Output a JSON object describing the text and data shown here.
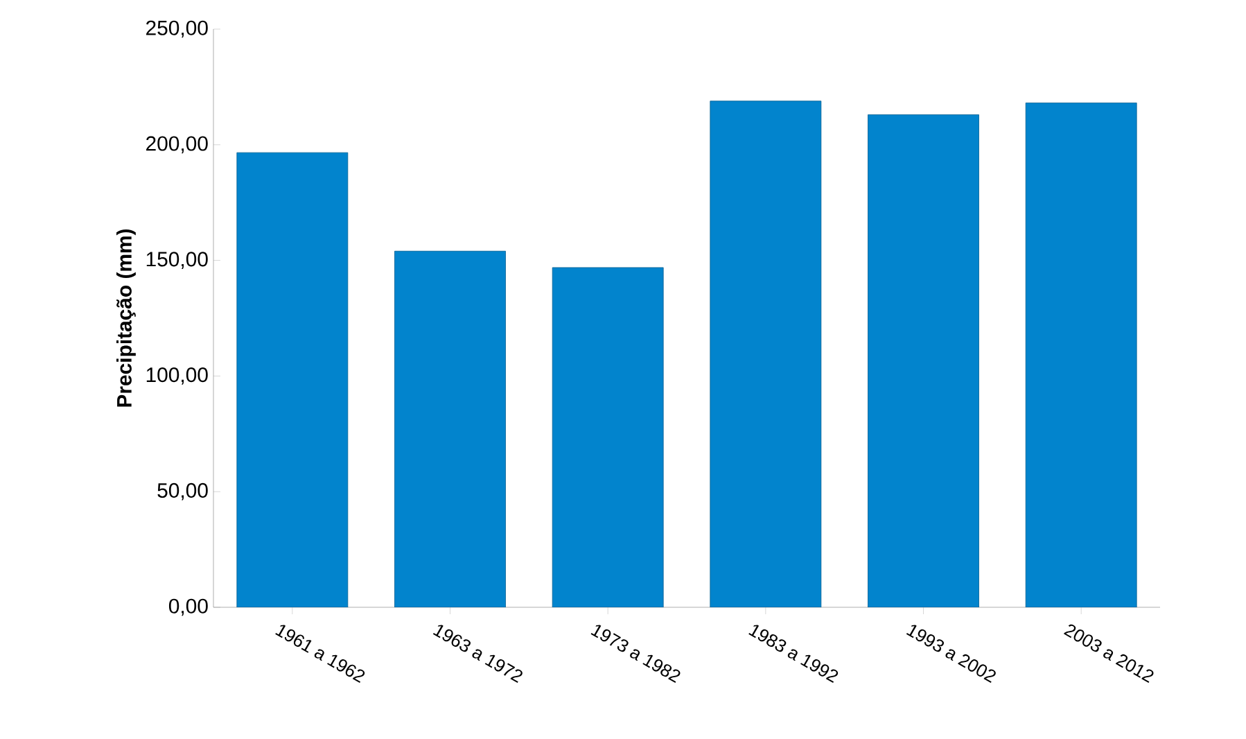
{
  "chart_data": {
    "type": "bar",
    "ylabel": "Precipitação (mm)",
    "categories": [
      "1961 a 1962",
      "1963 a 1972",
      "1973 a 1982",
      "1983 a 1992",
      "1993 a 2002",
      "2003 a 2012"
    ],
    "values": [
      196.6,
      154.0,
      146.9,
      218.9,
      213.0,
      218.1
    ],
    "color": "#0284cd",
    "ylim": [
      0,
      250
    ],
    "yticks": [
      {
        "value": 0,
        "label": "0,00"
      },
      {
        "value": 50,
        "label": "50,00"
      },
      {
        "value": 100,
        "label": "100,00"
      },
      {
        "value": 150,
        "label": "150,00"
      },
      {
        "value": 200,
        "label": "200,00"
      },
      {
        "value": 250,
        "label": "250,00"
      }
    ]
  }
}
